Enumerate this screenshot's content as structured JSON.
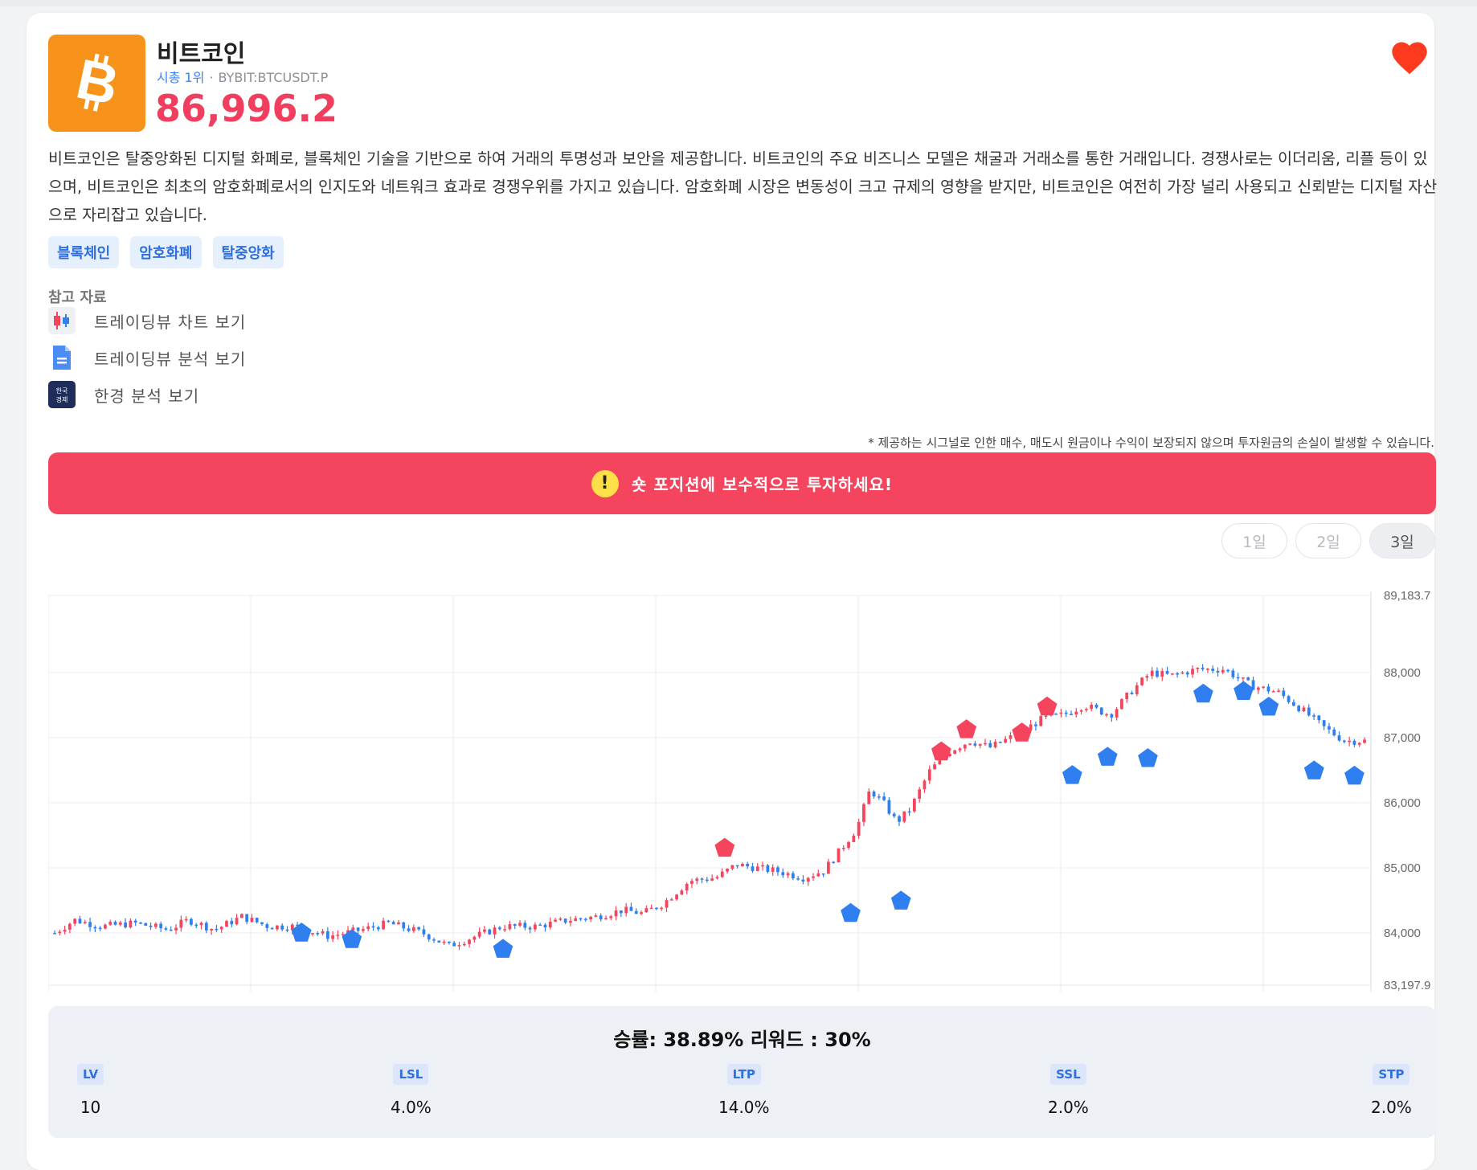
{
  "coin": {
    "name": "비트코인",
    "rank": "시총 1위",
    "separator": "·",
    "symbol": "BYBIT:BTCUSDT.P",
    "price": "86,996.2",
    "logo_glyph": "₿",
    "brand_color": "#f7931a",
    "price_color": "#f03e5e"
  },
  "description": "비트코인은 탈중앙화된 디지털 화폐로, 블록체인 기술을 기반으로 하여 거래의 투명성과 보안을 제공합니다. 비트코인의 주요 비즈니스 모델은 채굴과 거래소를 통한 거래입니다. 경쟁사로는 이더리움, 리플 등이 있으며, 비트코인은 최초의 암호화폐로서의 인지도와 네트워크 효과로 경쟁우위를 가지고 있습니다. 암호화폐 시장은 변동성이 크고 규제의 영향을 받지만, 비트코인은 여전히 가장 널리 사용되고 신뢰받는 디지털 자산으로 자리잡고 있습니다.",
  "tags": [
    "블록체인",
    "암호화폐",
    "탈중앙화"
  ],
  "references": {
    "title": "참고 자료",
    "items": [
      {
        "label": "트레이딩뷰 차트 보기",
        "icon": "candlestick-chart-icon"
      },
      {
        "label": "트레이딩뷰 분석 보기",
        "icon": "document-icon"
      },
      {
        "label": "한경 분석 보기",
        "icon": "hankyung-logo-icon",
        "icon_text": "한국경제"
      }
    ]
  },
  "disclaimer": "* 제공하는 시그널로 인한 매수, 매도시 원금이나 수익이 보장되지 않으며 투자원금의 손실이 발생할 수 있습니다.",
  "alert": {
    "icon": "!",
    "text": "숏 포지션에 보수적으로 투자하세요!",
    "color": "#f5455e"
  },
  "periods": [
    {
      "label": "1일",
      "active": false
    },
    {
      "label": "2일",
      "active": false
    },
    {
      "label": "3일",
      "active": true
    }
  ],
  "chart_data": {
    "type": "candlestick",
    "y_axis_labels": [
      "89,183.7",
      "88,000",
      "87,000",
      "86,000",
      "85,000",
      "84,000",
      "83,197.9"
    ],
    "ylim": [
      83197.9,
      89183.7
    ],
    "x_count": 260,
    "grid": true,
    "up_color": "#f5455e",
    "down_color": "#2f7ff0",
    "price_path": [
      [
        0,
        84000
      ],
      [
        6,
        84200
      ],
      [
        14,
        84100
      ],
      [
        24,
        84150
      ],
      [
        34,
        84050
      ],
      [
        40,
        84200
      ],
      [
        48,
        84050
      ],
      [
        56,
        84250
      ],
      [
        64,
        84100
      ],
      [
        72,
        84100
      ],
      [
        82,
        83950
      ],
      [
        92,
        84050
      ],
      [
        100,
        84150
      ],
      [
        110,
        84000
      ],
      [
        118,
        83800
      ],
      [
        126,
        83950
      ],
      [
        134,
        84100
      ],
      [
        144,
        84100
      ],
      [
        154,
        84200
      ],
      [
        162,
        84250
      ],
      [
        170,
        84350
      ],
      [
        176,
        84300
      ],
      [
        182,
        84450
      ],
      [
        190,
        84800
      ],
      [
        198,
        84850
      ],
      [
        204,
        85050
      ],
      [
        210,
        85000
      ],
      [
        216,
        84950
      ],
      [
        224,
        84850
      ],
      [
        230,
        84950
      ],
      [
        234,
        85200
      ],
      [
        240,
        85600
      ],
      [
        244,
        86200
      ],
      [
        248,
        86000
      ],
      [
        252,
        85700
      ],
      [
        256,
        85900
      ],
      [
        262,
        86500
      ],
      [
        268,
        86800
      ],
      [
        274,
        86950
      ],
      [
        280,
        86850
      ],
      [
        288,
        87050
      ],
      [
        296,
        87300
      ],
      [
        302,
        87350
      ],
      [
        308,
        87500
      ],
      [
        316,
        87350
      ],
      [
        322,
        87700
      ],
      [
        328,
        88000
      ],
      [
        334,
        87950
      ],
      [
        342,
        88050
      ],
      [
        350,
        88050
      ],
      [
        358,
        87800
      ],
      [
        366,
        87700
      ],
      [
        374,
        87400
      ],
      [
        380,
        87150
      ],
      [
        386,
        86950
      ],
      [
        392,
        86950
      ]
    ],
    "signals": [
      {
        "kind": "buy",
        "i": 49,
        "price": 84270
      },
      {
        "kind": "buy",
        "i": 59,
        "price": 84170
      },
      {
        "kind": "buy",
        "i": 89,
        "price": 84020
      },
      {
        "kind": "sell",
        "i": 133,
        "price": 85030
      },
      {
        "kind": "buy",
        "i": 158,
        "price": 84570
      },
      {
        "kind": "buy",
        "i": 168,
        "price": 84760
      },
      {
        "kind": "sell",
        "i": 176,
        "price": 86510
      },
      {
        "kind": "sell",
        "i": 181,
        "price": 86850
      },
      {
        "kind": "sell",
        "i": 192,
        "price": 86800
      },
      {
        "kind": "sell",
        "i": 197,
        "price": 87200
      },
      {
        "kind": "buy",
        "i": 202,
        "price": 86690
      },
      {
        "kind": "buy",
        "i": 209,
        "price": 86970
      },
      {
        "kind": "buy",
        "i": 217,
        "price": 86950
      },
      {
        "kind": "buy",
        "i": 228,
        "price": 87940
      },
      {
        "kind": "buy",
        "i": 236,
        "price": 87980
      },
      {
        "kind": "buy",
        "i": 241,
        "price": 87740
      },
      {
        "kind": "buy",
        "i": 250,
        "price": 86760
      },
      {
        "kind": "buy",
        "i": 258,
        "price": 86680
      }
    ]
  },
  "stats": {
    "headline": "승률: 38.89% 리워드 : 30%",
    "items": [
      {
        "label": "LV",
        "value": "10"
      },
      {
        "label": "LSL",
        "value": "4.0%"
      },
      {
        "label": "LTP",
        "value": "14.0%"
      },
      {
        "label": "SSL",
        "value": "2.0%"
      },
      {
        "label": "STP",
        "value": "2.0%"
      }
    ]
  }
}
